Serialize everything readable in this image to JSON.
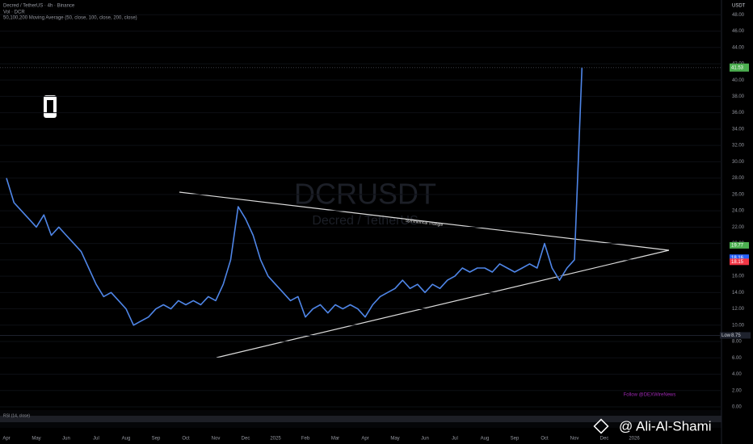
{
  "header": {
    "symbol": "Decred / TetherUS · 4h · Binance",
    "volume": "Vol · DCR",
    "indicator": "50,100,200 Moving Average (50, close, 100, close, 200, close)"
  },
  "watermark": {
    "ticker": "DCRUSDT",
    "name": "Decred / TetherUS"
  },
  "annotations": {
    "pattern": "Symmetrical Triangle",
    "follow": "Follow @DEXWireNews",
    "rsi": "RSI (14, close)"
  },
  "credit": "@ Ali-Al-Shami",
  "chart_data": {
    "type": "line",
    "color": "#4f86e8",
    "grid": true,
    "y_unit": "USDT",
    "categories": [
      "Apr",
      null,
      null,
      null,
      "May",
      null,
      null,
      null,
      "Jun",
      null,
      null,
      null,
      "Jul",
      null,
      null,
      null,
      "Aug",
      null,
      null,
      null,
      "Sep",
      null,
      null,
      null,
      "Oct",
      null,
      null,
      null,
      "Nov",
      null,
      null,
      null,
      "Dec",
      null,
      null,
      null,
      "2025",
      null,
      null,
      null,
      "Feb",
      null,
      null,
      null,
      "Mar",
      null,
      null,
      null,
      "Apr",
      null,
      null,
      null,
      "May",
      null,
      null,
      null,
      "Jun",
      null,
      null,
      null,
      "Jul",
      null,
      null,
      null,
      "Aug",
      null,
      null,
      null,
      "Sep",
      null,
      null,
      null,
      "Oct",
      null,
      null,
      null,
      "Nov",
      null,
      null,
      null,
      "Dec",
      null,
      null,
      null,
      "2026",
      null,
      null,
      null,
      null,
      null,
      null,
      null,
      null,
      null,
      null,
      null
    ],
    "values": [
      28,
      25,
      24,
      23,
      22,
      23.5,
      21,
      22,
      21,
      20,
      19,
      17,
      15,
      13.5,
      14,
      13,
      12,
      10,
      10.5,
      11,
      12,
      12.5,
      12,
      13,
      12.5,
      13,
      12.5,
      13.5,
      13,
      15,
      18,
      24.5,
      23,
      21,
      18,
      16,
      15,
      14,
      13,
      13.5,
      11,
      12,
      12.5,
      11.5,
      12.5,
      12,
      12.5,
      12,
      11,
      12.5,
      13.5,
      14,
      14.5,
      15.5,
      14.5,
      15,
      14,
      15,
      14.5,
      15.5,
      16,
      17,
      16.5,
      17,
      17,
      16.5,
      17.5,
      17,
      16.5,
      17,
      17.5,
      17,
      20,
      17,
      15.5,
      17,
      18,
      41.53,
      null,
      null,
      null,
      null,
      null,
      null,
      null,
      null,
      null,
      null,
      null,
      null,
      null,
      null,
      null,
      null,
      null,
      null
    ],
    "ylim": [
      0,
      49.8
    ],
    "yticks": [
      {
        "value": 0,
        "label": "0.00"
      },
      {
        "value": 2,
        "label": "2.00"
      },
      {
        "value": 4,
        "label": "4.00"
      },
      {
        "value": 6,
        "label": "6.00"
      },
      {
        "value": 8,
        "label": "8.00"
      },
      {
        "value": 10,
        "label": "10.00"
      },
      {
        "value": 12,
        "label": "12.00"
      },
      {
        "value": 14,
        "label": "14.00"
      },
      {
        "value": 16,
        "label": "16.00"
      },
      {
        "value": 18,
        "label": "18.00"
      },
      {
        "value": 20,
        "label": "20.00"
      },
      {
        "value": 22,
        "label": "22.00"
      },
      {
        "value": 24,
        "label": "24.00"
      },
      {
        "value": 26,
        "label": "26.00"
      },
      {
        "value": 28,
        "label": "28.00"
      },
      {
        "value": 30,
        "label": "30.00"
      },
      {
        "value": 32,
        "label": "32.00"
      },
      {
        "value": 34,
        "label": "34.00"
      },
      {
        "value": 36,
        "label": "36.00"
      },
      {
        "value": 38,
        "label": "38.00"
      },
      {
        "value": 40,
        "label": "40.00"
      },
      {
        "value": 42,
        "label": "42.00"
      },
      {
        "value": 44,
        "label": "44.00"
      },
      {
        "value": 46,
        "label": "46.00"
      },
      {
        "value": 48,
        "label": "48.00"
      }
    ],
    "last_price": {
      "value": 41.53,
      "color": "#4caf50"
    },
    "price_labels": [
      {
        "value": 19.77,
        "color": "#4caf50"
      },
      {
        "value": 18.16,
        "color": "#2962ff"
      },
      {
        "value": 18.15,
        "color": "#f23645"
      }
    ],
    "low": {
      "label": "Low",
      "value": 8.75
    }
  }
}
